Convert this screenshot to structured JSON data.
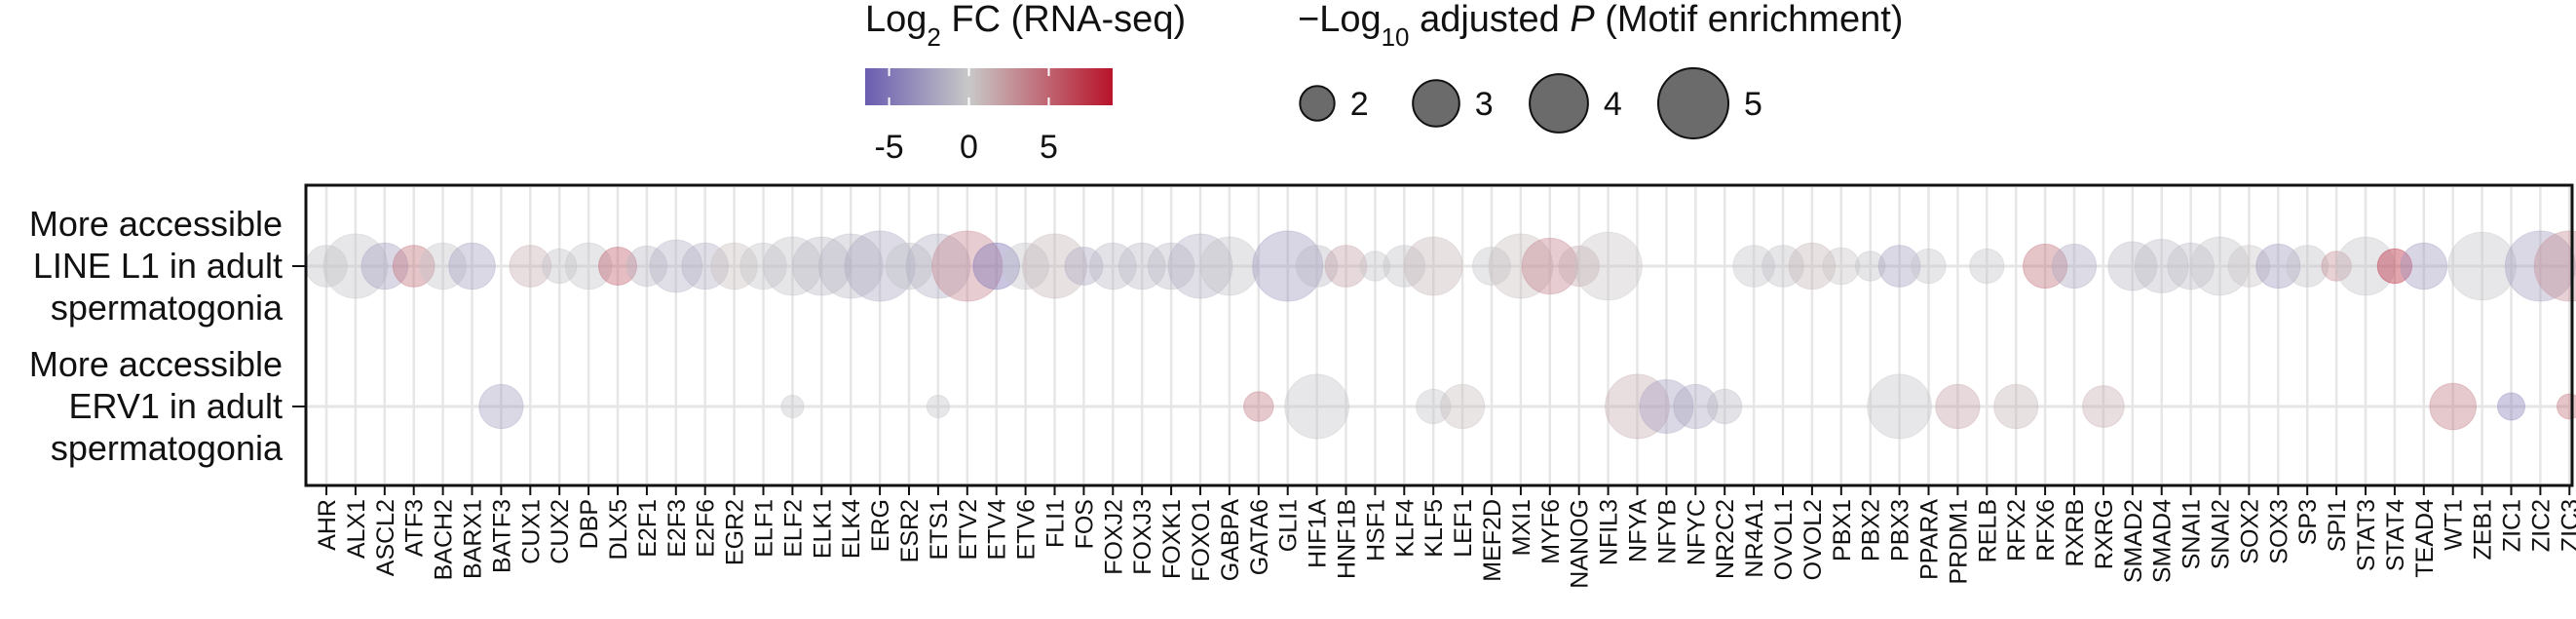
{
  "chart_data": {
    "type": "scatter",
    "subtype": "dot-plot",
    "x_labels": [
      "AHR",
      "ALX1",
      "ASCL2",
      "ATF3",
      "BACH2",
      "BARX1",
      "BATF3",
      "CUX1",
      "CUX2",
      "DBP",
      "DLX5",
      "E2F1",
      "E2F3",
      "E2F6",
      "EGR2",
      "ELF1",
      "ELF2",
      "ELK1",
      "ELK4",
      "ERG",
      "ESR2",
      "ETS1",
      "ETV2",
      "ETV4",
      "ETV6",
      "FLI1",
      "FOS",
      "FOXJ2",
      "FOXJ3",
      "FOXK1",
      "FOXO1",
      "GABPA",
      "GATA6",
      "GLI1",
      "HIF1A",
      "HNF1B",
      "HSF1",
      "KLF4",
      "KLF5",
      "LEF1",
      "MEF2D",
      "MXI1",
      "MYF6",
      "NANOG",
      "NFIL3",
      "NFYA",
      "NFYB",
      "NFYC",
      "NR2C2",
      "NR4A1",
      "OVOL1",
      "OVOL2",
      "PBX1",
      "PBX2",
      "PBX3",
      "PPARA",
      "PRDM1",
      "RELB",
      "RFX2",
      "RFX6",
      "RXRB",
      "RXRG",
      "SMAD2",
      "SMAD4",
      "SNAI1",
      "SNAI2",
      "SOX2",
      "SOX3",
      "SP3",
      "SPI1",
      "STAT3",
      "STAT4",
      "TEAD4",
      "WT1",
      "ZEB1",
      "ZIC1",
      "ZIC2",
      "ZIC3"
    ],
    "rows": [
      {
        "label_lines": [
          "More accessible",
          "LINE L1 in adult",
          "spermatogonia"
        ]
      },
      {
        "label_lines": [
          "More accessible",
          "ERV1 in adult",
          "spermatogonia"
        ]
      }
    ],
    "points": [
      {
        "tf": "AHR",
        "row": 0,
        "p": 2.6,
        "fc": -0.5
      },
      {
        "tf": "ALX1",
        "row": 0,
        "p": 4.5,
        "fc": -0.3
      },
      {
        "tf": "ASCL2",
        "row": 0,
        "p": 3.0,
        "fc": -2.5
      },
      {
        "tf": "ATF3",
        "row": 0,
        "p": 2.6,
        "fc": 4.5
      },
      {
        "tf": "BACH2",
        "row": 0,
        "p": 3.0,
        "fc": -0.3
      },
      {
        "tf": "BARX1",
        "row": 0,
        "p": 3.0,
        "fc": -2.5
      },
      {
        "tf": "CUX1",
        "row": 0,
        "p": 2.6,
        "fc": 1.5
      },
      {
        "tf": "CUX2",
        "row": 0,
        "p": 2.0,
        "fc": -0.5
      },
      {
        "tf": "DBP",
        "row": 0,
        "p": 3.0,
        "fc": -0.3
      },
      {
        "tf": "DLX5",
        "row": 0,
        "p": 2.3,
        "fc": 5.5
      },
      {
        "tf": "E2F1",
        "row": 0,
        "p": 2.5,
        "fc": -1.0
      },
      {
        "tf": "E2F3",
        "row": 0,
        "p": 3.5,
        "fc": -1.5
      },
      {
        "tf": "E2F6",
        "row": 0,
        "p": 3.0,
        "fc": -1.5
      },
      {
        "tf": "EGR2",
        "row": 0,
        "p": 3.0,
        "fc": 0.5
      },
      {
        "tf": "ELF1",
        "row": 0,
        "p": 3.0,
        "fc": -0.3
      },
      {
        "tf": "ELF2",
        "row": 0,
        "p": 4.0,
        "fc": -0.5
      },
      {
        "tf": "ELK1",
        "row": 0,
        "p": 4.0,
        "fc": -1.0
      },
      {
        "tf": "ELK4",
        "row": 0,
        "p": 4.5,
        "fc": -1.0
      },
      {
        "tf": "ERG",
        "row": 0,
        "p": 5.0,
        "fc": -2.0
      },
      {
        "tf": "ESR2",
        "row": 0,
        "p": 3.0,
        "fc": -0.5
      },
      {
        "tf": "ETS1",
        "row": 0,
        "p": 4.5,
        "fc": -1.5
      },
      {
        "tf": "ETV2",
        "row": 0,
        "p": 5.0,
        "fc": 3.5
      },
      {
        "tf": "ETV4",
        "row": 0,
        "p": 3.0,
        "fc": -5.5
      },
      {
        "tf": "ETV6",
        "row": 0,
        "p": 3.0,
        "fc": -0.3
      },
      {
        "tf": "FLI1",
        "row": 0,
        "p": 4.5,
        "fc": 1.0
      },
      {
        "tf": "FOS",
        "row": 0,
        "p": 2.3,
        "fc": -2.0
      },
      {
        "tf": "FOXJ2",
        "row": 0,
        "p": 3.0,
        "fc": -1.0
      },
      {
        "tf": "FOXJ3",
        "row": 0,
        "p": 3.0,
        "fc": -1.0
      },
      {
        "tf": "FOXK1",
        "row": 0,
        "p": 3.0,
        "fc": -1.0
      },
      {
        "tf": "FOXO1",
        "row": 0,
        "p": 4.5,
        "fc": -1.5
      },
      {
        "tf": "GABPA",
        "row": 0,
        "p": 4.0,
        "fc": -0.5
      },
      {
        "tf": "GLI1",
        "row": 0,
        "p": 5.0,
        "fc": -3.0
      },
      {
        "tf": "HIF1A",
        "row": 0,
        "p": 2.6,
        "fc": -1.0
      },
      {
        "tf": "HNF1B",
        "row": 0,
        "p": 2.6,
        "fc": 2.0
      },
      {
        "tf": "HSF1",
        "row": 0,
        "p": 1.6,
        "fc": -0.3
      },
      {
        "tf": "KLF4",
        "row": 0,
        "p": 2.6,
        "fc": -0.5
      },
      {
        "tf": "KLF5",
        "row": 0,
        "p": 4.0,
        "fc": 1.0
      },
      {
        "tf": "MEF2D",
        "row": 0,
        "p": 2.3,
        "fc": -0.3
      },
      {
        "tf": "MXI1",
        "row": 0,
        "p": 4.5,
        "fc": 0.5
      },
      {
        "tf": "MYF6",
        "row": 0,
        "p": 3.8,
        "fc": 3.5
      },
      {
        "tf": "NANOG",
        "row": 0,
        "p": 2.5,
        "fc": 1.5
      },
      {
        "tf": "NFIL3",
        "row": 0,
        "p": 4.8,
        "fc": 0.3
      },
      {
        "tf": "NR4A1",
        "row": 0,
        "p": 2.6,
        "fc": -0.3
      },
      {
        "tf": "OVOL1",
        "row": 0,
        "p": 2.6,
        "fc": -0.5
      },
      {
        "tf": "OVOL2",
        "row": 0,
        "p": 3.0,
        "fc": 1.0
      },
      {
        "tf": "PBX1",
        "row": 0,
        "p": 2.2,
        "fc": 0.3
      },
      {
        "tf": "PBX2",
        "row": 0,
        "p": 1.6,
        "fc": -0.5
      },
      {
        "tf": "PBX3",
        "row": 0,
        "p": 2.6,
        "fc": -2.5
      },
      {
        "tf": "PPARA",
        "row": 0,
        "p": 2.0,
        "fc": -0.3
      },
      {
        "tf": "RELB",
        "row": 0,
        "p": 2.0,
        "fc": -0.3
      },
      {
        "tf": "RFX6",
        "row": 0,
        "p": 2.8,
        "fc": 4.5
      },
      {
        "tf": "RXRB",
        "row": 0,
        "p": 2.8,
        "fc": -2.0
      },
      {
        "tf": "SMAD2",
        "row": 0,
        "p": 3.2,
        "fc": -1.0
      },
      {
        "tf": "SMAD4",
        "row": 0,
        "p": 3.6,
        "fc": -0.8
      },
      {
        "tf": "SNAI1",
        "row": 0,
        "p": 3.0,
        "fc": -0.8
      },
      {
        "tf": "SNAI2",
        "row": 0,
        "p": 4.0,
        "fc": -0.3
      },
      {
        "tf": "SOX2",
        "row": 0,
        "p": 2.6,
        "fc": 0.3
      },
      {
        "tf": "SOX3",
        "row": 0,
        "p": 2.8,
        "fc": -3.0
      },
      {
        "tf": "SP3",
        "row": 0,
        "p": 2.6,
        "fc": -0.5
      },
      {
        "tf": "SPI1",
        "row": 0,
        "p": 1.6,
        "fc": 3.0
      },
      {
        "tf": "STAT3",
        "row": 0,
        "p": 4.0,
        "fc": -0.3
      },
      {
        "tf": "STAT4",
        "row": 0,
        "p": 2.0,
        "fc": 8.5
      },
      {
        "tf": "TEAD4",
        "row": 0,
        "p": 3.0,
        "fc": -3.0
      },
      {
        "tf": "ZEB1",
        "row": 0,
        "p": 4.8,
        "fc": -0.3
      },
      {
        "tf": "ZIC2",
        "row": 0,
        "p": 5.0,
        "fc": -2.5
      },
      {
        "tf": "ZIC3",
        "row": 0,
        "p": 5.0,
        "fc": 3.0
      },
      {
        "tf": "BATF3",
        "row": 1,
        "p": 2.8,
        "fc": -2.5
      },
      {
        "tf": "ELF2",
        "row": 1,
        "p": 1.0,
        "fc": -0.3
      },
      {
        "tf": "ETS1",
        "row": 1,
        "p": 1.0,
        "fc": -0.3
      },
      {
        "tf": "GATA6",
        "row": 1,
        "p": 1.6,
        "fc": 4.0
      },
      {
        "tf": "HIF1A",
        "row": 1,
        "p": 4.5,
        "fc": -0.3
      },
      {
        "tf": "KLF5",
        "row": 1,
        "p": 2.0,
        "fc": -0.3
      },
      {
        "tf": "LEF1",
        "row": 1,
        "p": 2.8,
        "fc": 0.5
      },
      {
        "tf": "NFYA",
        "row": 1,
        "p": 4.5,
        "fc": 1.5
      },
      {
        "tf": "NFYB",
        "row": 1,
        "p": 3.6,
        "fc": -2.5
      },
      {
        "tf": "NFYC",
        "row": 1,
        "p": 2.8,
        "fc": -2.0
      },
      {
        "tf": "NR2C2",
        "row": 1,
        "p": 2.0,
        "fc": -1.0
      },
      {
        "tf": "PBX3",
        "row": 1,
        "p": 4.5,
        "fc": -0.3
      },
      {
        "tf": "PRDM1",
        "row": 1,
        "p": 2.8,
        "fc": 2.0
      },
      {
        "tf": "RFX2",
        "row": 1,
        "p": 2.8,
        "fc": 1.0
      },
      {
        "tf": "RXRG",
        "row": 1,
        "p": 2.6,
        "fc": 1.5
      },
      {
        "tf": "WT1",
        "row": 1,
        "p": 3.0,
        "fc": 4.0
      },
      {
        "tf": "ZIC1",
        "row": 1,
        "p": 1.4,
        "fc": -4.5
      },
      {
        "tf": "ZIC3",
        "row": 1,
        "p": 1.2,
        "fc": 4.5
      }
    ],
    "color_legend": {
      "title_base": "Log",
      "title_sub": "2",
      "title_rest": " FC (RNA-seq)",
      "ticks": [
        "-5",
        "0",
        "5"
      ],
      "tick_values": [
        -5,
        0,
        5
      ],
      "range": [
        -6.5,
        9
      ],
      "colors": {
        "low": "#6a5cb0",
        "mid": "#c8c8c8",
        "high": "#b8132a"
      }
    },
    "size_legend": {
      "title_prefix": "−Log",
      "title_sub": "10",
      "title_mid": " adjusted ",
      "title_italic": "P",
      "title_rest": " (Motif enrichment)",
      "values": [
        2,
        3,
        4,
        5
      ],
      "labels": [
        "2",
        "3",
        "4",
        "5"
      ]
    },
    "grid": true,
    "point_opacity": 0.4
  }
}
